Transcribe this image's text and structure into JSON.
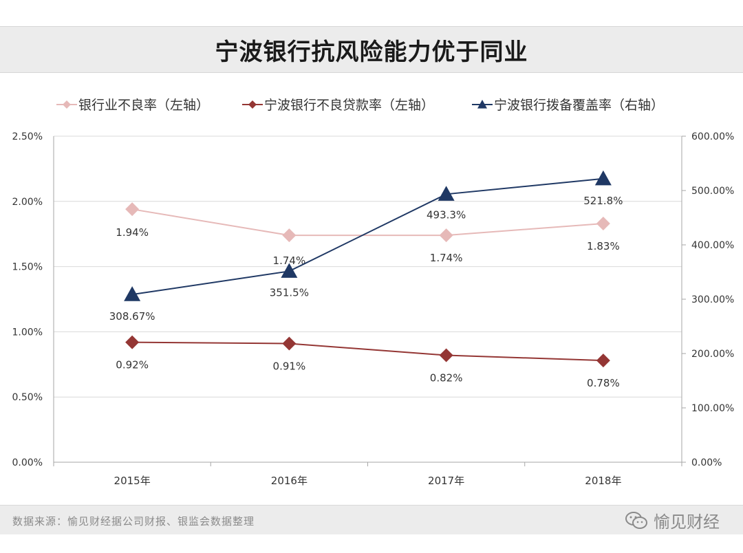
{
  "header": {
    "title": "宁波银行抗风险能力优于同业"
  },
  "footer": {
    "source": "数据来源：愉见财经据公司财报、银监会数据整理",
    "brand": "愉见财经",
    "brand_icon": "wechat-icon"
  },
  "colors": {
    "industry_npl": "#e6b9b8",
    "ningbo_npl": "#943634",
    "ningbo_coverage": "#1f3864",
    "grid": "#d9d9d9",
    "axis_text": "#333333"
  },
  "chart_data": {
    "type": "line",
    "categories": [
      "2015年",
      "2016年",
      "2017年",
      "2018年"
    ],
    "left_axis": {
      "ylim": [
        0,
        0.025
      ],
      "ticks": [
        0,
        0.005,
        0.01,
        0.015,
        0.02,
        0.025
      ],
      "tick_labels": [
        "0.00%",
        "0.50%",
        "1.00%",
        "1.50%",
        "2.00%",
        "2.50%"
      ]
    },
    "right_axis": {
      "ylim": [
        0,
        6
      ],
      "ticks": [
        0,
        1,
        2,
        3,
        4,
        5,
        6
      ],
      "tick_labels": [
        "0.00%",
        "100.00%",
        "200.00%",
        "300.00%",
        "400.00%",
        "500.00%",
        "600.00%"
      ]
    },
    "series": [
      {
        "name": "银行业不良率（左轴）",
        "axis": "left",
        "marker": "diamond",
        "color": "#e6b9b8",
        "values": [
          0.0194,
          0.0174,
          0.0174,
          0.0183
        ],
        "labels": [
          "1.94%",
          "1.74%",
          "1.74%",
          "1.83%"
        ]
      },
      {
        "name": "宁波银行不良贷款率（左轴）",
        "axis": "left",
        "marker": "diamond",
        "color": "#943634",
        "values": [
          0.0092,
          0.0091,
          0.0082,
          0.0078
        ],
        "labels": [
          "0.92%",
          "0.91%",
          "0.82%",
          "0.78%"
        ]
      },
      {
        "name": "宁波银行拨备覆盖率（右轴）",
        "axis": "right",
        "marker": "triangle",
        "color": "#1f3864",
        "values": [
          3.0867,
          3.515,
          4.933,
          5.218
        ],
        "labels": [
          "308.67%",
          "351.5%",
          "493.3%",
          "521.8%"
        ]
      }
    ],
    "legend_position": "top",
    "grid": true
  }
}
